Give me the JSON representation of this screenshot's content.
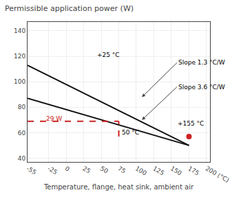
{
  "chart_data": {
    "type": "line",
    "title": "Permissible application power (W)",
    "xlabel": "Temperature, flange, heat sink, ambient air",
    "xlim": [
      -55,
      205
    ],
    "ylim": [
      37,
      147
    ],
    "xticks": [
      -55,
      -25,
      0,
      25,
      50,
      75,
      100,
      125,
      150,
      175,
      {
        "value": 200,
        "label": "200 (°C)"
      }
    ],
    "yticks": [
      40,
      60,
      80,
      100,
      120,
      140
    ],
    "grid": true,
    "series": [
      {
        "x": [
          -55,
          175
        ],
        "values": [
          113,
          50
        ],
        "color": "#111111"
      },
      {
        "x": [
          -55,
          175
        ],
        "values": [
          87,
          50
        ],
        "color": "#111111"
      },
      {
        "x": [
          -55,
          75
        ],
        "values": [
          69,
          69
        ],
        "color": "#cc2222",
        "line_style": "dashed"
      },
      {
        "x": [
          75,
          75
        ],
        "values": [
          57,
          69
        ],
        "color": "#cc2222",
        "line_style": "dashed"
      },
      {
        "type": "scatter",
        "x": [
          175
        ],
        "values": [
          57
        ],
        "color": "#cc2222",
        "marker": "circle"
      }
    ],
    "annotations": [
      {
        "text": "+25 °C",
        "x": 42,
        "y": 121
      },
      {
        "text": "Slope 1.3 °C/W",
        "x": 158,
        "y": 115,
        "arrow_x": 108,
        "arrow_y": 88
      },
      {
        "text": "Slope 3.6 °C/W",
        "x": 158,
        "y": 96,
        "arrow_x": 108,
        "arrow_y": 70
      },
      {
        "text": "+155 °C",
        "x": 157,
        "y": 67
      },
      {
        "text": "29 W",
        "x": -30,
        "y": 71,
        "color": "#cc2222"
      },
      {
        "text": "50 °C",
        "x": 77,
        "y": 60
      }
    ]
  }
}
